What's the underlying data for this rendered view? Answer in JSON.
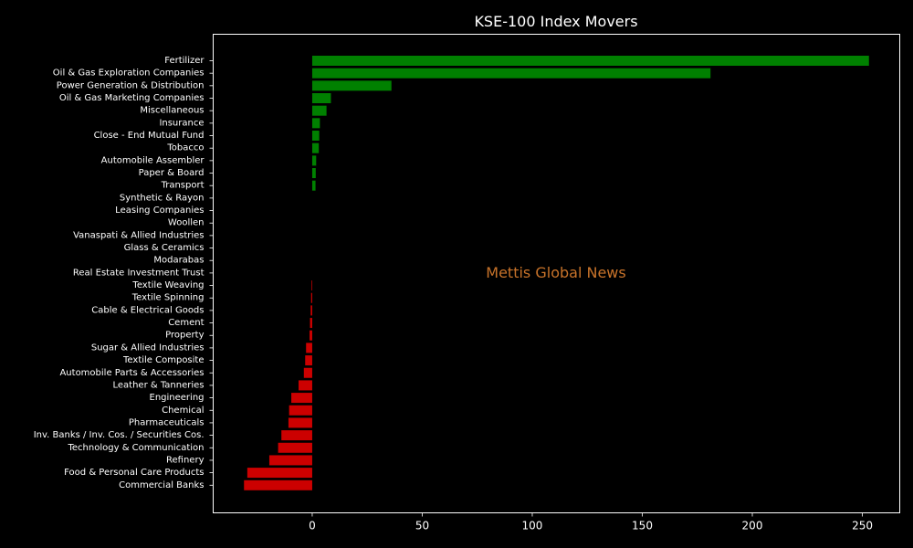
{
  "chart_data": {
    "type": "bar",
    "orientation": "horizontal",
    "title": "KSE-100 Index Movers",
    "xlabel": "",
    "ylabel": "",
    "xlim": [
      -45,
      267
    ],
    "xticks": [
      0,
      50,
      100,
      150,
      200,
      250
    ],
    "grid": false,
    "watermark": "Mettis Global News",
    "colors": {
      "positive": "#008000",
      "negative": "#cc0000",
      "background": "#000000",
      "text": "#ffffff",
      "watermark": "#c8732a"
    },
    "categories": [
      "Fertilizer",
      "Oil & Gas Exploration Companies",
      "Power Generation & Distribution",
      "Oil & Gas Marketing Companies",
      "Miscellaneous",
      "Insurance",
      "Close - End Mutual Fund",
      "Tobacco",
      "Automobile Assembler",
      "Paper & Board",
      "Transport",
      "Synthetic & Rayon",
      "Leasing Companies",
      "Woollen",
      "Vanaspati & Allied Industries",
      "Glass & Ceramics",
      "Modarabas",
      "Real Estate Investment Trust",
      "Textile Weaving",
      "Textile Spinning",
      "Cable & Electrical Goods",
      "Cement",
      "Property",
      "Sugar & Allied Industries",
      "Textile Composite",
      "Automobile Parts & Accessories",
      "Leather & Tanneries",
      "Engineering",
      "Chemical",
      "Pharmaceuticals",
      "Inv. Banks / Inv. Cos. / Securities Cos.",
      "Technology & Communication",
      "Refinery",
      "Food & Personal Care Products",
      "Commercial Banks"
    ],
    "values": [
      253,
      181,
      36,
      8.5,
      6.5,
      3.5,
      3.2,
      3,
      1.8,
      1.6,
      1.5,
      0,
      0,
      0,
      0,
      0,
      0,
      0,
      -0.3,
      -0.5,
      -0.7,
      -1,
      -1.2,
      -2.8,
      -3.2,
      -3.8,
      -6.2,
      -9.5,
      -10.5,
      -10.8,
      -14,
      -15.5,
      -19.5,
      -29.5,
      -31
    ]
  }
}
